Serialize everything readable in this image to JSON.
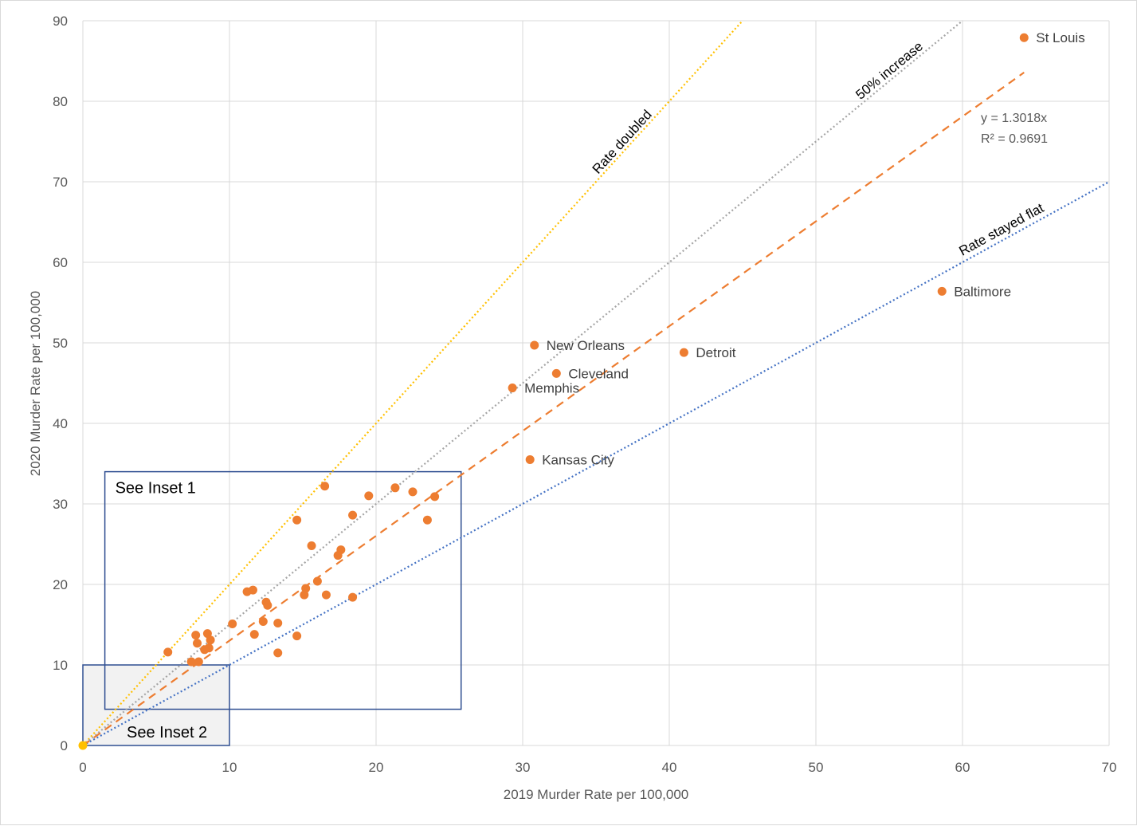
{
  "chart_data": {
    "type": "scatter",
    "xlabel": "2019 Murder Rate per 100,000",
    "ylabel": "2020 Murder Rate per 100,000",
    "xlim": [
      0,
      70
    ],
    "ylim": [
      0,
      90
    ],
    "xticks": [
      0,
      10,
      20,
      30,
      40,
      50,
      60,
      70
    ],
    "yticks": [
      0,
      10,
      20,
      30,
      40,
      50,
      60,
      70,
      80,
      90
    ],
    "grid": true,
    "colors": {
      "points": "#ed7d31",
      "origin_point": "#ffc000",
      "rate_doubled": "#ffc000",
      "fifty_pct": "#a5a5a5",
      "trend": "#ed7d31",
      "flat": "#4472c4",
      "inset_border": "#2f4e91",
      "grid": "#d9d9d9"
    },
    "reference_lines": [
      {
        "key": "doubled",
        "label": "Rate doubled",
        "slope": 2.0
      },
      {
        "key": "fifty",
        "label": "50% increase",
        "slope": 1.5
      },
      {
        "key": "flat",
        "label": "Rate stayed flat",
        "slope": 1.0
      }
    ],
    "trendline": {
      "slope": 1.3018,
      "equation": "y = 1.3018x",
      "r_squared": "R² = 0.9691",
      "x_end": 64.2
    },
    "labeled_points": [
      {
        "name": "St Louis",
        "x": 64.2,
        "y": 87.9
      },
      {
        "name": "Baltimore",
        "x": 58.6,
        "y": 56.4
      },
      {
        "name": "New Orleans",
        "x": 30.8,
        "y": 49.7
      },
      {
        "name": "Detroit",
        "x": 41.0,
        "y": 48.8
      },
      {
        "name": "Cleveland",
        "x": 32.3,
        "y": 46.2
      },
      {
        "name": "Memphis",
        "x": 29.3,
        "y": 44.4
      },
      {
        "name": "Kansas City",
        "x": 30.5,
        "y": 35.5
      }
    ],
    "points": [
      {
        "x": 16.5,
        "y": 32.2
      },
      {
        "x": 21.3,
        "y": 32.0
      },
      {
        "x": 22.5,
        "y": 31.5
      },
      {
        "x": 19.5,
        "y": 31.0
      },
      {
        "x": 24.0,
        "y": 30.9
      },
      {
        "x": 18.4,
        "y": 28.6
      },
      {
        "x": 14.6,
        "y": 28.0
      },
      {
        "x": 23.5,
        "y": 28.0
      },
      {
        "x": 15.6,
        "y": 24.8
      },
      {
        "x": 17.6,
        "y": 24.3
      },
      {
        "x": 17.4,
        "y": 23.6
      },
      {
        "x": 16.0,
        "y": 20.4
      },
      {
        "x": 11.2,
        "y": 19.1
      },
      {
        "x": 11.6,
        "y": 19.3
      },
      {
        "x": 15.2,
        "y": 19.5
      },
      {
        "x": 15.1,
        "y": 18.7
      },
      {
        "x": 16.6,
        "y": 18.7
      },
      {
        "x": 18.4,
        "y": 18.4
      },
      {
        "x": 12.5,
        "y": 17.8
      },
      {
        "x": 12.6,
        "y": 17.4
      },
      {
        "x": 10.2,
        "y": 15.1
      },
      {
        "x": 12.3,
        "y": 15.4
      },
      {
        "x": 13.3,
        "y": 15.2
      },
      {
        "x": 11.7,
        "y": 13.8
      },
      {
        "x": 14.6,
        "y": 13.6
      },
      {
        "x": 7.7,
        "y": 13.7
      },
      {
        "x": 8.5,
        "y": 13.9
      },
      {
        "x": 8.7,
        "y": 13.1
      },
      {
        "x": 7.8,
        "y": 12.7
      },
      {
        "x": 8.6,
        "y": 12.1
      },
      {
        "x": 8.3,
        "y": 11.9
      },
      {
        "x": 5.8,
        "y": 11.6
      },
      {
        "x": 13.3,
        "y": 11.5
      },
      {
        "x": 7.4,
        "y": 10.4
      },
      {
        "x": 7.9,
        "y": 10.4
      }
    ],
    "origin_point": {
      "x": 0,
      "y": 0
    },
    "insets": [
      {
        "label": "See Inset 1",
        "x0": 1.5,
        "x1": 25.8,
        "y0": 4.5,
        "y1": 34.0
      },
      {
        "label": "See Inset 2",
        "x0": 0,
        "x1": 10,
        "y0": 0,
        "y1": 10
      }
    ]
  }
}
